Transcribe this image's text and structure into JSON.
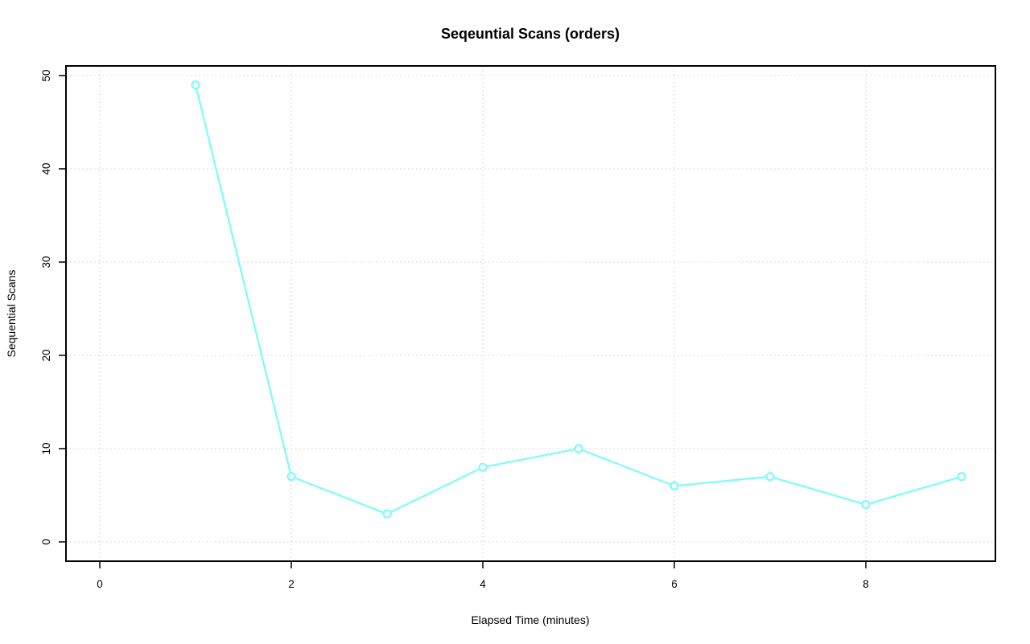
{
  "page": {
    "background": "#ffffff"
  },
  "chart_data": {
    "type": "line",
    "title": "Seqeuntial Scans (orders)",
    "xlabel": "Elapsed Time (minutes)",
    "ylabel": "Sequential Scans",
    "x": [
      1,
      2,
      3,
      4,
      5,
      6,
      7,
      8,
      9
    ],
    "values": [
      49,
      7,
      3,
      8,
      10,
      6,
      7,
      4,
      7
    ],
    "xticks": [
      0,
      2,
      4,
      6,
      8
    ],
    "yticks": [
      0,
      10,
      20,
      30,
      40,
      50
    ],
    "xlim": [
      -0.353,
      9.353
    ],
    "ylim": [
      -2.07,
      51.03
    ],
    "grid": true,
    "grid_style": "dotted",
    "legend": null,
    "marker": "open-circle",
    "series_color": "#7DFBFB",
    "marker_fill": "#FFFFFF",
    "grid_color": "#CFCFCF",
    "axis_color": "#000000",
    "text_color": "#000000"
  }
}
